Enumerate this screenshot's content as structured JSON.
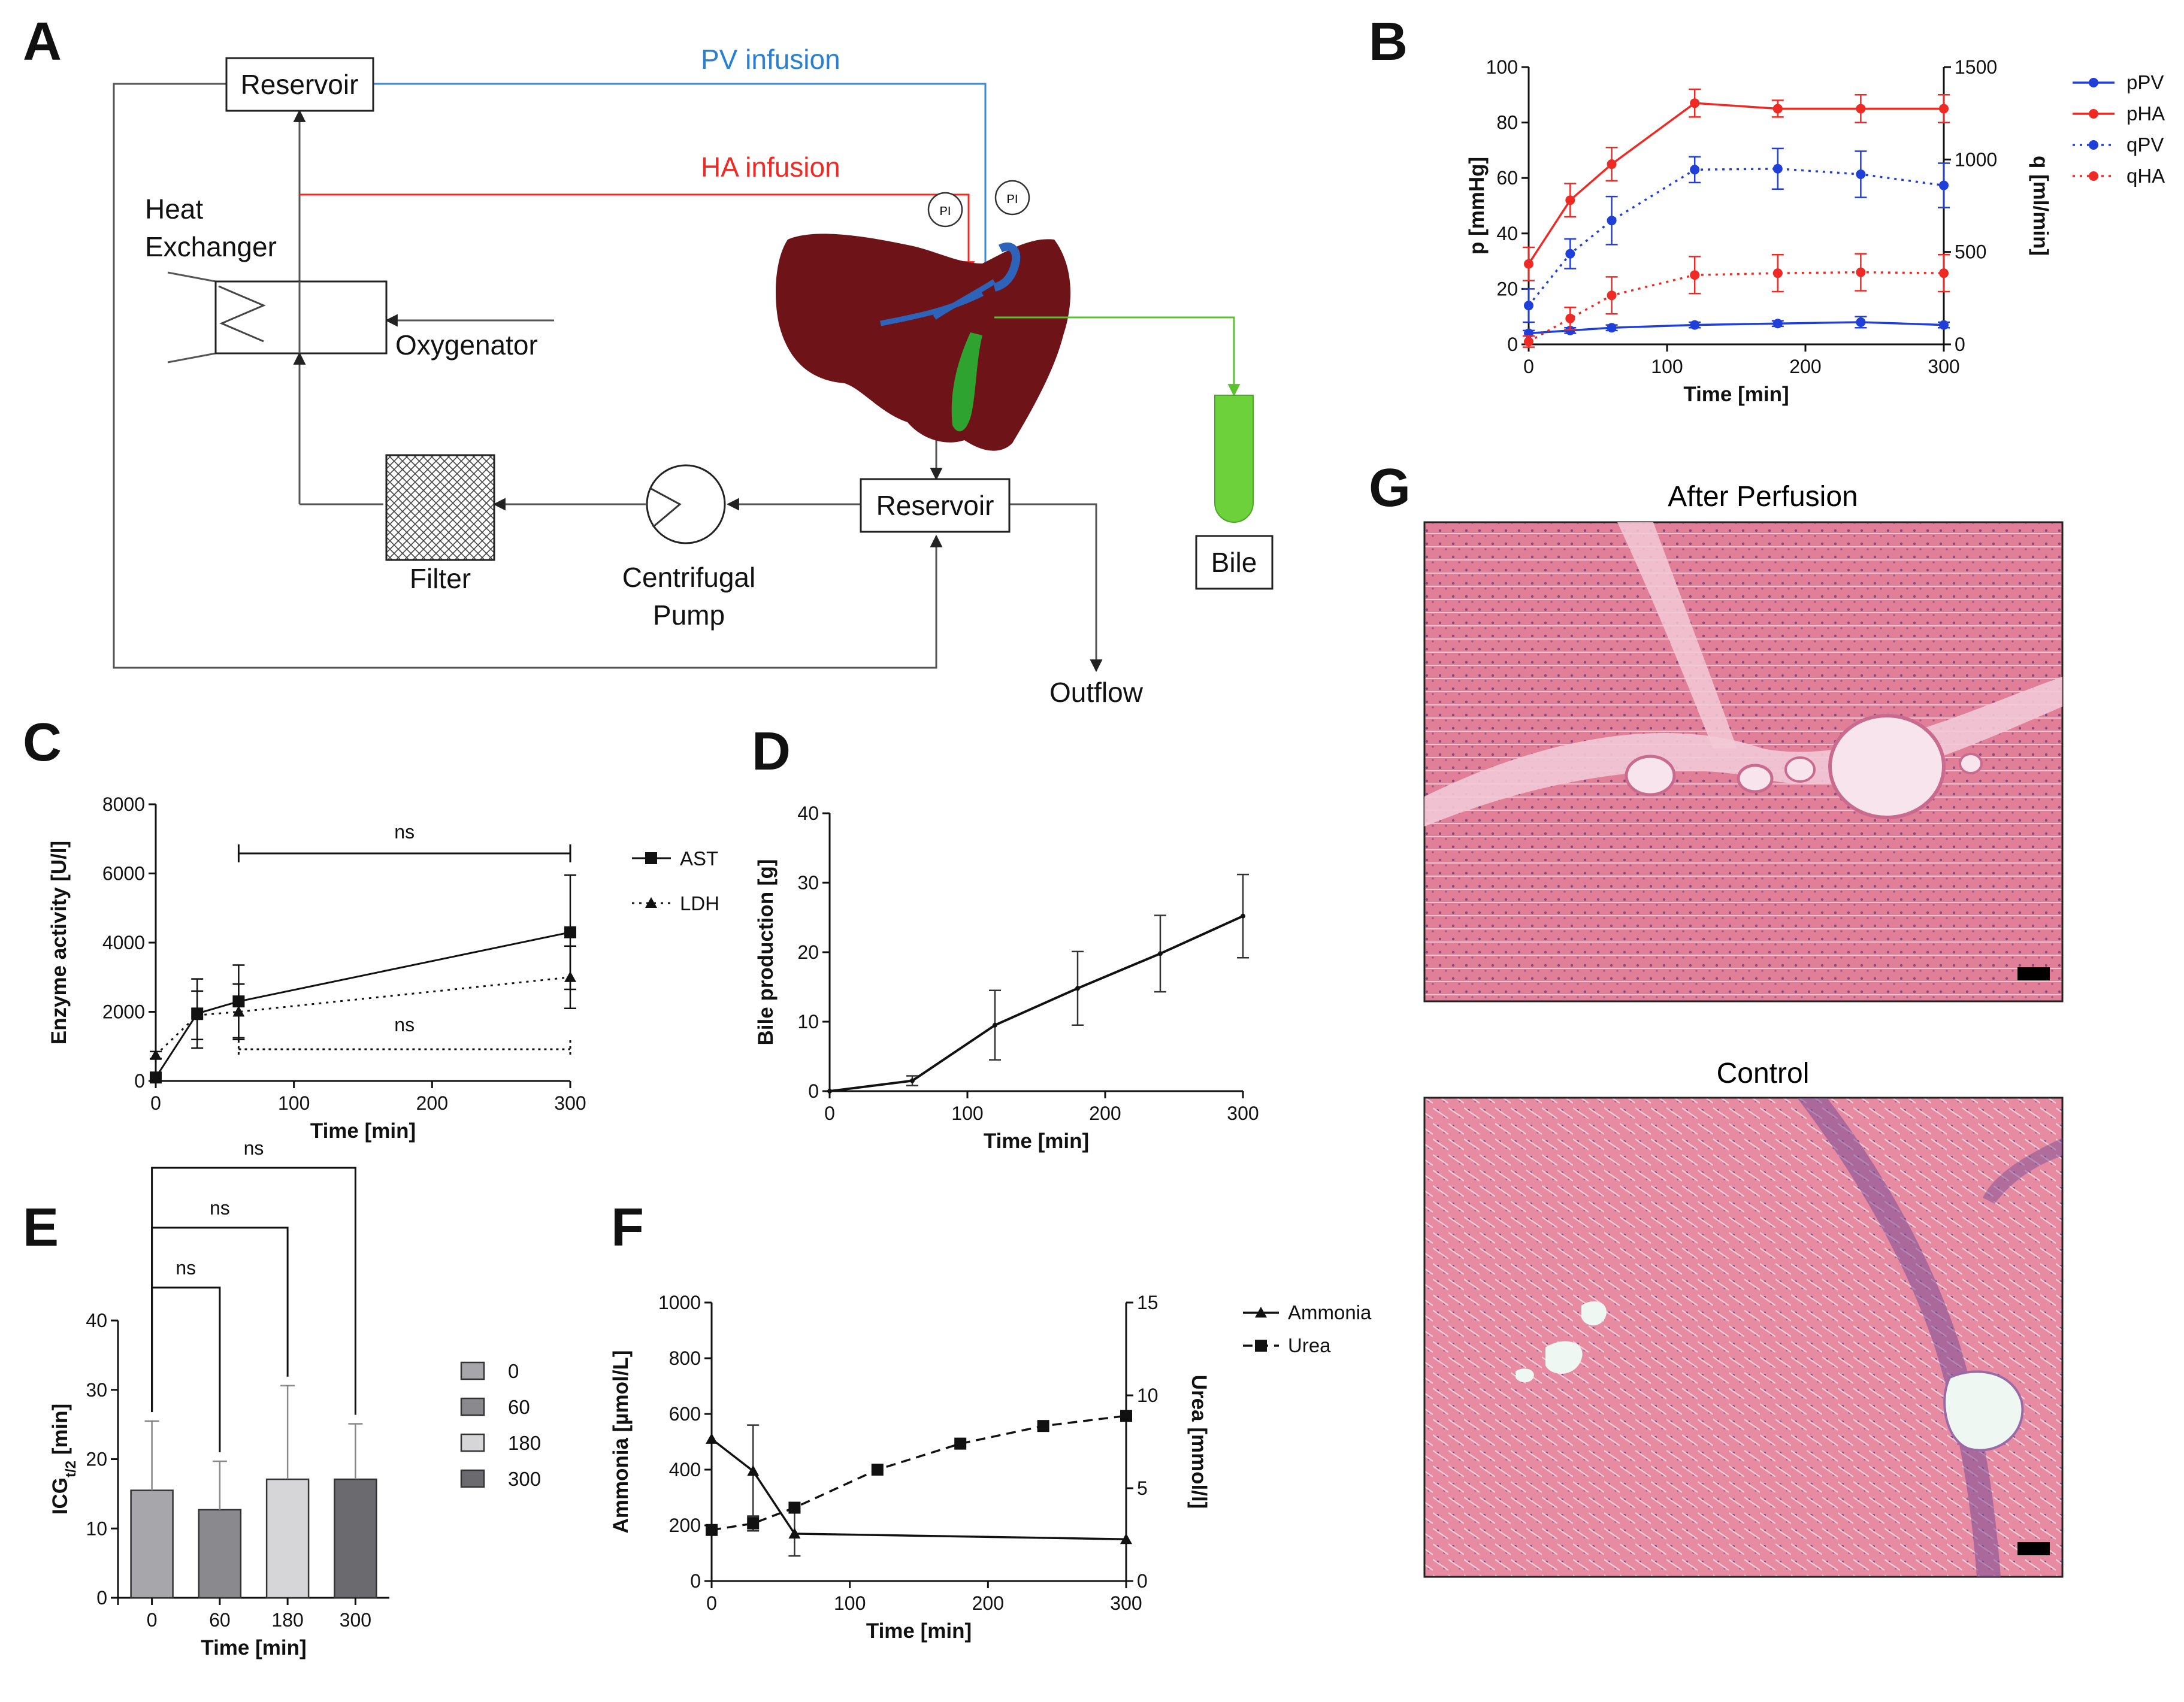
{
  "colors": {
    "blue": "#1f3fd8",
    "red": "#ee2a24",
    "pv_line": "#3b8ad9",
    "ha_line": "#ee2a24",
    "liver": "#6e1317",
    "bile_green": "#5cc12e",
    "tissue_pink": "#e98aa2"
  },
  "panel_labels": {
    "A": "A",
    "B": "B",
    "C": "C",
    "D": "D",
    "E": "E",
    "F": "F",
    "G": "G"
  },
  "panelA": {
    "reservoir_top": "Reservoir",
    "reservoir_bottom": "Reservoir",
    "pv_infusion": "PV infusion",
    "ha_infusion": "HA infusion",
    "heat_exchanger_1": "Heat",
    "heat_exchanger_2": "Exchanger",
    "oxygenator": "Oxygenator",
    "filter": "Filter",
    "pump_1": "Centrifugal",
    "pump_2": "Pump",
    "outflow": "Outflow",
    "bile": "Bile",
    "pi_1": "PI",
    "pi_2": "PI"
  },
  "chart_data": [
    {
      "panel": "B",
      "type": "line",
      "xlabel": "Time [min]",
      "ylabel": "p [mmHg]",
      "ylabel_right": "q [ml/min]",
      "xlim": [
        0,
        300
      ],
      "ylim": [
        0,
        100
      ],
      "ylim_right": [
        0,
        1500
      ],
      "x_ticks": [
        "0",
        "100",
        "200",
        "300"
      ],
      "y_ticks": [
        "0",
        "20",
        "40",
        "60",
        "80",
        "100"
      ],
      "y_ticks_right": [
        "0",
        "500",
        "1000",
        "1500"
      ],
      "x": [
        0,
        30,
        60,
        120,
        180,
        240,
        300
      ],
      "series": [
        {
          "name": "pPV",
          "axis": "left",
          "style": "solid",
          "color": "#1f3fd8",
          "values": [
            4,
            5,
            6,
            7,
            7.5,
            8,
            7
          ],
          "err": [
            1,
            1,
            1,
            1,
            1,
            2,
            1
          ]
        },
        {
          "name": "pHA",
          "axis": "left",
          "style": "solid",
          "color": "#ee2a24",
          "values": [
            29,
            52,
            65,
            87,
            85,
            85,
            85
          ],
          "err": [
            6,
            6,
            6,
            5,
            3,
            5,
            5
          ]
        },
        {
          "name": "qPV",
          "axis": "right",
          "style": "dotted",
          "color": "#1f3fd8",
          "values": [
            210,
            490,
            670,
            945,
            950,
            920,
            860
          ],
          "err": [
            90,
            80,
            130,
            70,
            110,
            125,
            120
          ]
        },
        {
          "name": "qHA",
          "axis": "right",
          "style": "dotted",
          "color": "#ee2a24",
          "values": [
            15,
            140,
            265,
            375,
            385,
            390,
            385
          ],
          "err": [
            30,
            60,
            100,
            100,
            100,
            100,
            100
          ]
        }
      ],
      "legend": [
        "pPV",
        "pHA",
        "qPV",
        "qHA"
      ]
    },
    {
      "panel": "C",
      "type": "line",
      "xlabel": "Time [min]",
      "ylabel": "Enzyme activity [U/l]",
      "xlim": [
        0,
        300
      ],
      "ylim": [
        0,
        8000
      ],
      "x_ticks": [
        "0",
        "100",
        "200",
        "300"
      ],
      "y_ticks": [
        "0",
        "2000",
        "4000",
        "6000",
        "8000"
      ],
      "series": [
        {
          "name": "AST",
          "style": "solid",
          "marker": "square",
          "x": [
            0,
            30,
            60,
            300
          ],
          "values": [
            100,
            1950,
            2300,
            4300
          ],
          "err": [
            100,
            1000,
            1050,
            1650
          ]
        },
        {
          "name": "LDH",
          "style": "dotted",
          "marker": "triangle",
          "x": [
            0,
            30,
            60,
            300
          ],
          "values": [
            750,
            1900,
            2000,
            3000
          ],
          "err": [
            100,
            700,
            800,
            900
          ]
        }
      ],
      "annotations": [
        {
          "text": "ns",
          "from": 60,
          "to": 300,
          "series": "AST"
        },
        {
          "text": "ns",
          "from": 60,
          "to": 300,
          "series": "LDH"
        }
      ]
    },
    {
      "panel": "D",
      "type": "line",
      "xlabel": "Time [min]",
      "ylabel": "Bile production [g]",
      "xlim": [
        0,
        300
      ],
      "ylim": [
        0,
        40
      ],
      "x_ticks": [
        "0",
        "100",
        "200",
        "300"
      ],
      "y_ticks": [
        "0",
        "10",
        "20",
        "30",
        "40"
      ],
      "x": [
        0,
        60,
        120,
        180,
        240,
        300
      ],
      "series": [
        {
          "name": "Bile production",
          "values": [
            0,
            1.5,
            9.5,
            14.8,
            19.8,
            25.2
          ],
          "err": [
            0,
            0.7,
            5,
            5.3,
            5.5,
            6
          ]
        }
      ]
    },
    {
      "panel": "E",
      "type": "bar",
      "xlabel": "Time [min]",
      "ylabel": "ICG",
      "ylabel_sub": "t/2",
      "ylabel_unit": " [min]",
      "ylim": [
        0,
        40
      ],
      "y_ticks": [
        "0",
        "10",
        "20",
        "30",
        "40"
      ],
      "categories": [
        "0",
        "60",
        "180",
        "300"
      ],
      "values": [
        15.5,
        12.7,
        17.1,
        17.1
      ],
      "err": [
        10,
        7,
        13.5,
        8
      ],
      "bar_colors": [
        "#a7a7ab",
        "#8a8a8e",
        "#d6d6d8",
        "#6b6b6f"
      ],
      "legend": [
        "0",
        "60",
        "180",
        "300"
      ],
      "annotations": [
        {
          "text": "ns",
          "from": "0",
          "to": "60"
        },
        {
          "text": "ns",
          "from": "0",
          "to": "180"
        },
        {
          "text": "ns",
          "from": "0",
          "to": "300"
        }
      ]
    },
    {
      "panel": "F",
      "type": "line",
      "xlabel": "Time [min]",
      "ylabel": "Ammonia [µmol/L]",
      "ylabel_right": "Urea [mmol/l]",
      "xlim": [
        0,
        300
      ],
      "ylim": [
        0,
        1000
      ],
      "ylim_right": [
        0,
        15
      ],
      "x_ticks": [
        "0",
        "100",
        "200",
        "300"
      ],
      "y_ticks": [
        "0",
        "200",
        "400",
        "600",
        "800",
        "1000"
      ],
      "y_ticks_right": [
        "0",
        "5",
        "10",
        "15"
      ],
      "series": [
        {
          "name": "Ammonia",
          "axis": "left",
          "style": "solid",
          "marker": "triangle",
          "x": [
            0,
            30,
            60,
            300
          ],
          "values": [
            510,
            395,
            170,
            150
          ],
          "err": [
            0,
            165,
            80,
            0
          ]
        },
        {
          "name": "Urea",
          "axis": "right",
          "style": "dashed",
          "marker": "square",
          "x": [
            0,
            30,
            60,
            120,
            180,
            240,
            300
          ],
          "values": [
            2.75,
            3.1,
            3.95,
            6.0,
            7.4,
            8.35,
            8.9
          ],
          "err": [
            0,
            0.4,
            0,
            0,
            0,
            0,
            0
          ]
        }
      ],
      "legend": [
        "Ammonia",
        "Urea"
      ]
    }
  ],
  "panelG": {
    "after_title": "After Perfusion",
    "control_title": "Control"
  }
}
